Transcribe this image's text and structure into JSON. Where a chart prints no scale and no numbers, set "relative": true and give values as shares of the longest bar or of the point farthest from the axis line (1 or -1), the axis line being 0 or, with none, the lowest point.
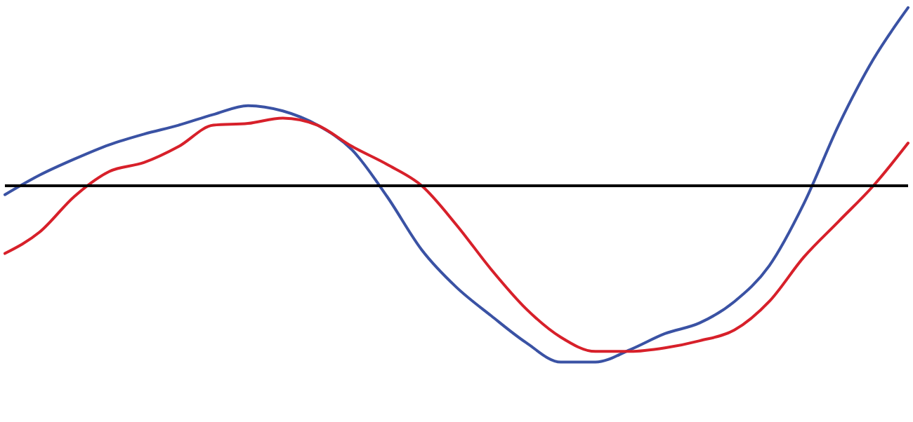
{
  "chart_data": {
    "type": "line",
    "relative": true,
    "tick_labels": false,
    "marker": "none",
    "line_style": "solid",
    "categories": [
      null,
      null,
      null,
      null,
      null,
      null,
      null,
      null,
      null,
      null,
      null,
      null,
      null,
      null,
      null,
      null,
      null,
      null,
      null,
      null,
      null,
      null,
      null,
      null,
      null,
      null,
      null
    ],
    "series": [
      {
        "color": "#3a52a4",
        "values": [
          -0.05,
          0.06,
          0.15,
          0.23,
          0.29,
          0.34,
          0.4,
          0.45,
          0.42,
          0.34,
          0.2,
          -0.06,
          -0.36,
          -0.57,
          -0.73,
          -0.88,
          -0.99,
          -0.99,
          -0.92,
          -0.83,
          -0.77,
          -0.65,
          -0.45,
          -0.1,
          0.34,
          0.71,
          1.0
        ]
      },
      {
        "color": "#d7202a",
        "values": [
          -0.38,
          -0.26,
          -0.06,
          0.08,
          0.13,
          0.22,
          0.34,
          0.35,
          0.38,
          0.34,
          0.22,
          0.12,
          0.0,
          -0.22,
          -0.47,
          -0.69,
          -0.85,
          -0.93,
          -0.93,
          -0.91,
          -0.87,
          -0.81,
          -0.65,
          -0.4,
          -0.2,
          0.0,
          0.24
        ]
      }
    ],
    "ref_lines": [
      {
        "axis": "y",
        "value": 0,
        "color": "#000000"
      }
    ]
  }
}
